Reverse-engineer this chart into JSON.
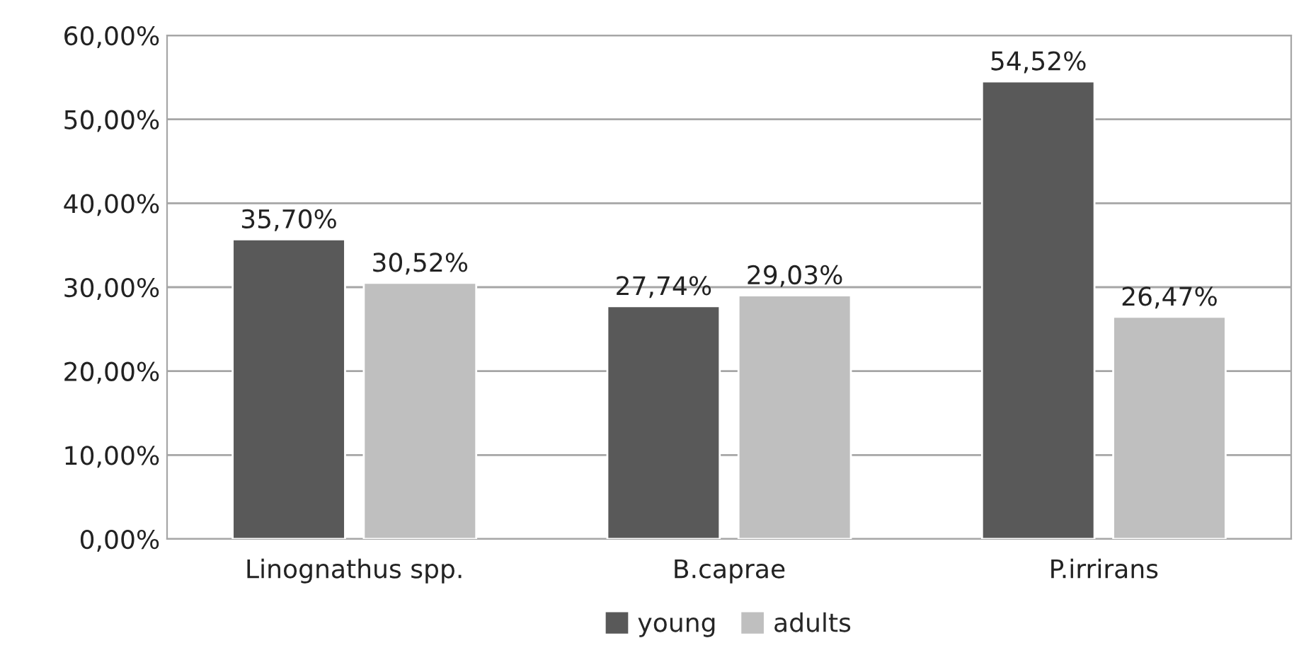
{
  "chart_data": {
    "type": "bar",
    "categories": [
      "Linognathus spp.",
      "B.caprae",
      "P.irrirans"
    ],
    "series": [
      {
        "name": "young",
        "color": "#595959",
        "values": [
          35.7,
          27.74,
          54.52
        ],
        "value_labels": [
          "35,70%",
          "27,74%",
          "54,52%"
        ]
      },
      {
        "name": "adults",
        "color": "#bfbfbf",
        "values": [
          30.52,
          29.03,
          26.47
        ],
        "value_labels": [
          "30,52%",
          "29,03%",
          "26,47%"
        ]
      }
    ],
    "ylim": [
      0,
      60
    ],
    "yticks": [
      {
        "value": 0,
        "label": "0,00%"
      },
      {
        "value": 10,
        "label": "10,00%"
      },
      {
        "value": 20,
        "label": "20,00%"
      },
      {
        "value": 30,
        "label": "30,00%"
      },
      {
        "value": 40,
        "label": "40,00%"
      },
      {
        "value": 50,
        "label": "50,00%"
      },
      {
        "value": 60,
        "label": "60,00%"
      }
    ],
    "grid": "y",
    "legend": "bottom"
  }
}
